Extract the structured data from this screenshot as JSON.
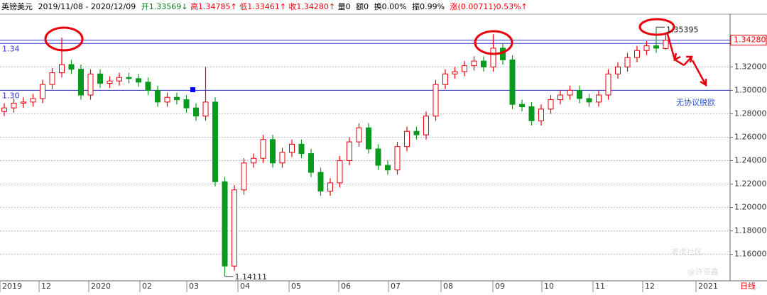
{
  "chart_data": {
    "type": "candlestick",
    "header": {
      "symbol": "英镑美元",
      "range": "2019/11/08 - 2020/12/09",
      "open": "开1.33569↓",
      "high": "高1.34785↑",
      "low": "低1.33461↑",
      "close": "收1.34280↑",
      "volume": "量0",
      "amount": "额0",
      "turnover": "换0.00%",
      "amplitude": "振0.99%",
      "change": "涨(0.00711)0.53%↑"
    },
    "up_color": "#e8000b",
    "down_color": "#0a9a1e",
    "ylim": [
      1.138,
      1.365
    ],
    "yticks": [
      {
        "value": 1.16,
        "label": "1.16000"
      },
      {
        "value": 1.18,
        "label": "1.18000"
      },
      {
        "value": 1.2,
        "label": "1.20000"
      },
      {
        "value": 1.22,
        "label": "1.22000"
      },
      {
        "value": 1.24,
        "label": "1.24000"
      },
      {
        "value": 1.26,
        "label": "1.26000"
      },
      {
        "value": 1.28,
        "label": "1.28000"
      },
      {
        "value": 1.3,
        "label": "1.30000"
      },
      {
        "value": 1.32,
        "label": "1.32000"
      }
    ],
    "grid": true,
    "reference_lines": [
      {
        "value": 1.34,
        "label": "1.34"
      },
      {
        "value": 1.3,
        "label": "1.30"
      }
    ],
    "price_tag": {
      "value": 1.3428,
      "label": "1.34280"
    },
    "x_labels": [
      "2019",
      "12",
      "2020",
      "02",
      "03",
      "04",
      "05",
      "06",
      "07",
      "08",
      "09",
      "10",
      "11",
      "12",
      "2021"
    ],
    "open": [
      1.282,
      1.285,
      1.289,
      1.29,
      1.293,
      1.305,
      1.315,
      1.322,
      1.318,
      1.296,
      1.314,
      1.306,
      1.308,
      1.311,
      1.31,
      1.307,
      1.3,
      1.29,
      1.294,
      1.292,
      1.285,
      1.278,
      1.29,
      1.222,
      1.15,
      1.215,
      1.238,
      1.242,
      1.258,
      1.238,
      1.247,
      1.254,
      1.246,
      1.23,
      1.214,
      1.221,
      1.24,
      1.256,
      1.268,
      1.25,
      1.236,
      1.232,
      1.252,
      1.265,
      1.262,
      1.278,
      1.305,
      1.314,
      1.316,
      1.321,
      1.325,
      1.32,
      1.336,
      1.326,
      1.288,
      1.286,
      1.274,
      1.284,
      1.292,
      1.296,
      1.3,
      1.293,
      1.29,
      1.296,
      1.314,
      1.32,
      1.328,
      1.334,
      1.338,
      1.33569
    ],
    "high": [
      1.289,
      1.293,
      1.294,
      1.297,
      1.309,
      1.319,
      1.345,
      1.326,
      1.322,
      1.318,
      1.318,
      1.312,
      1.315,
      1.315,
      1.314,
      1.311,
      1.304,
      1.298,
      1.298,
      1.296,
      1.289,
      1.32,
      1.294,
      1.226,
      1.219,
      1.242,
      1.246,
      1.262,
      1.262,
      1.251,
      1.258,
      1.258,
      1.25,
      1.234,
      1.225,
      1.244,
      1.26,
      1.272,
      1.272,
      1.254,
      1.24,
      1.256,
      1.269,
      1.269,
      1.282,
      1.309,
      1.318,
      1.32,
      1.325,
      1.329,
      1.329,
      1.3479,
      1.34,
      1.33,
      1.292,
      1.29,
      1.288,
      1.296,
      1.3,
      1.304,
      1.304,
      1.297,
      1.3,
      1.318,
      1.324,
      1.332,
      1.338,
      1.342,
      1.35395,
      1.34785
    ],
    "low": [
      1.278,
      1.281,
      1.285,
      1.286,
      1.289,
      1.301,
      1.311,
      1.314,
      1.292,
      1.292,
      1.302,
      1.302,
      1.304,
      1.306,
      1.303,
      1.296,
      1.286,
      1.286,
      1.288,
      1.281,
      1.274,
      1.274,
      1.218,
      1.14111,
      1.146,
      1.211,
      1.234,
      1.238,
      1.234,
      1.234,
      1.243,
      1.242,
      1.226,
      1.21,
      1.21,
      1.217,
      1.236,
      1.252,
      1.246,
      1.232,
      1.228,
      1.228,
      1.248,
      1.258,
      1.258,
      1.274,
      1.301,
      1.31,
      1.312,
      1.317,
      1.316,
      1.316,
      1.322,
      1.284,
      1.282,
      1.27,
      1.27,
      1.28,
      1.288,
      1.292,
      1.289,
      1.286,
      1.286,
      1.292,
      1.31,
      1.316,
      1.324,
      1.33,
      1.332,
      1.33461
    ],
    "close": [
      1.285,
      1.289,
      1.29,
      1.293,
      1.305,
      1.315,
      1.322,
      1.318,
      1.296,
      1.314,
      1.306,
      1.308,
      1.311,
      1.31,
      1.307,
      1.3,
      1.29,
      1.294,
      1.292,
      1.285,
      1.278,
      1.29,
      1.222,
      1.15,
      1.215,
      1.238,
      1.242,
      1.258,
      1.238,
      1.247,
      1.254,
      1.246,
      1.23,
      1.214,
      1.221,
      1.24,
      1.256,
      1.268,
      1.25,
      1.236,
      1.232,
      1.252,
      1.265,
      1.262,
      1.278,
      1.305,
      1.314,
      1.316,
      1.321,
      1.325,
      1.32,
      1.336,
      1.326,
      1.288,
      1.286,
      1.274,
      1.284,
      1.292,
      1.296,
      1.3,
      1.293,
      1.29,
      1.296,
      1.314,
      1.32,
      1.328,
      1.334,
      1.338,
      1.336,
      1.3428
    ],
    "annotations": {
      "high_label": "1.35395",
      "low_label": "1.14111",
      "brexit": "无协议脱欧",
      "period": "日线"
    },
    "watermark": [
      "老虎社区",
      "@许亚鑫"
    ]
  }
}
